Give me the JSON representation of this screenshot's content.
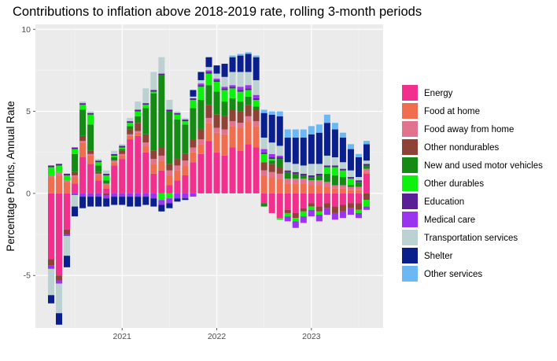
{
  "chart_data": {
    "type": "bar",
    "stacked": true,
    "title": "Contributions to inflation above 2018-2019 rate, rolling 3-month periods",
    "xlabel": "",
    "ylabel": "Percentage Points, Annual Rate",
    "x_tick_labels": [
      "2021",
      "2022",
      "2023"
    ],
    "y_ticks": [
      -5,
      0,
      5,
      10
    ],
    "ylim": [
      -8.2,
      10.3
    ],
    "grid": true,
    "legend_position": "right",
    "categories": [
      "2020-04",
      "2020-05",
      "2020-06",
      "2020-07",
      "2020-08",
      "2020-09",
      "2020-10",
      "2020-11",
      "2020-12",
      "2021-01",
      "2021-02",
      "2021-03",
      "2021-04",
      "2021-05",
      "2021-06",
      "2021-07",
      "2021-08",
      "2021-09",
      "2021-10",
      "2021-11",
      "2021-12",
      "2022-01",
      "2022-02",
      "2022-03",
      "2022-04",
      "2022-05",
      "2022-06",
      "2022-07",
      "2022-08",
      "2022-09",
      "2022-10",
      "2022-11",
      "2022-12",
      "2023-01",
      "2023-02",
      "2023-03",
      "2023-04",
      "2023-05",
      "2023-06",
      "2023-07",
      "2023-08"
    ],
    "series": [
      {
        "name": "Energy",
        "color": "#f0308c",
        "values": [
          -4.0,
          -5.0,
          -2.2,
          0.6,
          2.2,
          1.8,
          0.8,
          0.3,
          1.7,
          2.1,
          3.3,
          3.5,
          2.5,
          1.2,
          1.4,
          0.5,
          0.8,
          1.1,
          1.9,
          2.4,
          3.2,
          2.5,
          2.3,
          2.8,
          2.6,
          3.0,
          2.8,
          -0.6,
          -1.2,
          -1.5,
          -1.0,
          -1.2,
          -0.9,
          -0.6,
          -0.8,
          -0.6,
          -0.8,
          -0.7,
          -0.6,
          -0.6,
          1.2
        ]
      },
      {
        "name": "Food at home",
        "color": "#ef6e4f",
        "values": [
          1.0,
          1.1,
          0.7,
          0.4,
          0.9,
          0.5,
          0.3,
          0.2,
          0.2,
          0.2,
          0.2,
          0.2,
          0.4,
          0.6,
          0.6,
          0.6,
          0.6,
          0.6,
          0.6,
          0.6,
          1.1,
          1.2,
          1.3,
          1.3,
          1.4,
          1.4,
          1.3,
          1.1,
          1.0,
          0.9,
          0.6,
          0.6,
          0.6,
          0.5,
          0.5,
          0.4,
          0.3,
          0.3,
          0.2,
          0.2,
          0.1
        ]
      },
      {
        "name": "Food away from home",
        "color": "#e1738f",
        "values": [
          0.1,
          0.2,
          0.1,
          0.1,
          0.1,
          0.1,
          0.1,
          0.1,
          0.1,
          0.1,
          0.1,
          0.1,
          0.2,
          0.3,
          0.3,
          0.3,
          0.3,
          0.3,
          0.3,
          0.3,
          0.3,
          0.3,
          0.3,
          0.3,
          0.3,
          0.3,
          0.3,
          0.3,
          0.3,
          0.3,
          0.3,
          0.3,
          0.3,
          0.3,
          0.3,
          0.3,
          0.2,
          0.2,
          0.2,
          0.2,
          0.2
        ]
      },
      {
        "name": "Other nondurables",
        "color": "#8f4236",
        "values": [
          -0.4,
          -0.3,
          -0.3,
          0.2,
          0.3,
          0.2,
          0.1,
          -0.1,
          0.0,
          0.2,
          0.3,
          0.5,
          0.5,
          0.5,
          0.5,
          0.4,
          0.4,
          0.4,
          0.5,
          0.6,
          0.8,
          0.8,
          0.8,
          0.7,
          0.7,
          0.7,
          0.7,
          0.5,
          0.5,
          0.4,
          -0.2,
          -0.3,
          -0.2,
          -0.2,
          -0.3,
          -0.3,
          -0.4,
          -0.4,
          -0.3,
          -0.4,
          -0.4
        ]
      },
      {
        "name": "New and used motor vehicles",
        "color": "#158b15",
        "values": [
          0.0,
          0.0,
          0.0,
          1.1,
          1.6,
          1.6,
          0.4,
          0.2,
          0.2,
          0.1,
          0.2,
          0.4,
          1.6,
          3.5,
          4.4,
          3.2,
          2.4,
          1.8,
          1.9,
          1.8,
          1.2,
          1.4,
          0.9,
          0.7,
          0.6,
          0.5,
          0.2,
          -0.2,
          0.2,
          0.5,
          0.4,
          0.3,
          0.2,
          0.2,
          0.3,
          0.5,
          0.6,
          0.5,
          0.1,
          0.3,
          0.2
        ]
      },
      {
        "name": "Other durables",
        "color": "#0ef00e",
        "values": [
          0.5,
          0.4,
          0.3,
          0.3,
          0.3,
          0.6,
          0.2,
          0.3,
          0.1,
          0.1,
          0.2,
          0.3,
          0.2,
          0.1,
          -0.4,
          -0.3,
          0.3,
          0.2,
          0.5,
          0.8,
          0.7,
          0.6,
          0.7,
          0.6,
          0.6,
          0.4,
          0.4,
          0.5,
          0.1,
          -0.1,
          -0.2,
          -0.2,
          -0.3,
          -0.2,
          -0.2,
          0.4,
          0.5,
          0.4,
          0.4,
          -0.2,
          -0.4
        ]
      },
      {
        "name": "Education",
        "color": "#5a1e96",
        "values": [
          0.1,
          0.1,
          0.1,
          0.1,
          0.1,
          0.1,
          0.1,
          0.1,
          0.1,
          0.1,
          0.1,
          0.1,
          0.1,
          0.1,
          0.1,
          0.1,
          0.1,
          0.1,
          0.1,
          0.1,
          0.1,
          0.1,
          0.1,
          0.1,
          0.1,
          0.1,
          0.1,
          0.1,
          0.1,
          0.1,
          0.1,
          0.1,
          0.1,
          0.1,
          0.1,
          0.1,
          0.1,
          0.1,
          0.1,
          0.1,
          0.1
        ]
      },
      {
        "name": "Medical care",
        "color": "#9b34ef",
        "values": [
          -0.2,
          -0.2,
          -0.1,
          -0.1,
          -0.2,
          -0.2,
          -0.2,
          -0.2,
          -0.2,
          -0.2,
          -0.2,
          -0.2,
          -0.2,
          -0.3,
          -0.3,
          -0.3,
          -0.3,
          -0.3,
          -0.2,
          0.1,
          0.1,
          0.1,
          0.1,
          0.1,
          0.2,
          0.2,
          0.2,
          0.2,
          0.2,
          0.1,
          -0.3,
          -0.4,
          -0.4,
          -0.4,
          -0.4,
          -0.4,
          -0.4,
          -0.4,
          -0.4,
          -0.3,
          -0.2
        ]
      },
      {
        "name": "Transportation services",
        "color": "#bcd1d1",
        "values": [
          -1.6,
          -1.8,
          -1.2,
          -0.7,
          0.1,
          0.1,
          0.1,
          0.2,
          0.2,
          0.1,
          0.2,
          0.5,
          0.9,
          1.1,
          1.0,
          0.6,
          0.1,
          0.1,
          0.1,
          0.2,
          0.2,
          0.3,
          0.6,
          0.8,
          0.9,
          0.8,
          0.9,
          0.7,
          0.7,
          0.6,
          0.5,
          0.5,
          0.5,
          0.7,
          0.6,
          0.6,
          0.5,
          0.4,
          0.4,
          0.2,
          0.2
        ]
      },
      {
        "name": "Shelter",
        "color": "#0a1f8c",
        "values": [
          -0.5,
          -0.7,
          -0.7,
          -0.6,
          -0.7,
          -0.6,
          -0.6,
          -0.5,
          -0.5,
          -0.5,
          -0.6,
          -0.6,
          -0.5,
          -0.5,
          -0.4,
          -0.3,
          -0.2,
          -0.1,
          0.4,
          0.5,
          0.6,
          0.5,
          0.8,
          0.9,
          1.0,
          1.1,
          1.4,
          1.5,
          1.7,
          1.8,
          1.5,
          1.6,
          1.7,
          1.8,
          1.9,
          2.0,
          1.7,
          1.5,
          1.3,
          1.2,
          1.0
        ]
      },
      {
        "name": "Other services",
        "color": "#6bb8f5",
        "values": [
          0.0,
          0.0,
          0.0,
          0.0,
          0.0,
          0.0,
          0.0,
          0.0,
          0.0,
          0.0,
          0.0,
          0.0,
          0.0,
          0.0,
          0.0,
          0.0,
          0.0,
          0.0,
          0.0,
          0.0,
          0.0,
          0.0,
          0.0,
          0.1,
          0.1,
          0.1,
          0.1,
          0.2,
          0.2,
          0.3,
          0.5,
          0.5,
          0.5,
          0.5,
          0.5,
          0.5,
          0.4,
          0.3,
          0.3,
          0.2,
          0.2
        ]
      }
    ]
  }
}
